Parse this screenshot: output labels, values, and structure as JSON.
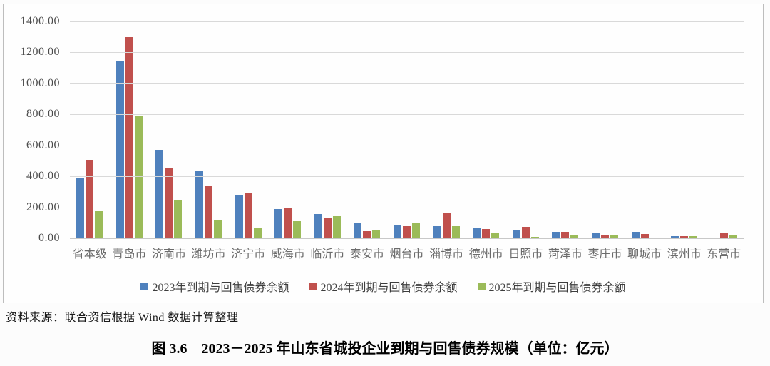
{
  "chart_data": {
    "type": "bar",
    "title": "",
    "xlabel": "",
    "ylabel": "",
    "ylim": [
      0,
      1400
    ],
    "ytick_step": 200,
    "ytick_labels": [
      "1400.00",
      "1200.00",
      "1000.00",
      "800.00",
      "600.00",
      "400.00",
      "200.00",
      "0.00"
    ],
    "grid": true,
    "legend_position": "bottom",
    "categories": [
      "省本级",
      "青岛市",
      "济南市",
      "潍坊市",
      "济宁市",
      "威海市",
      "临沂市",
      "泰安市",
      "烟台市",
      "淄博市",
      "德州市",
      "日照市",
      "菏泽市",
      "枣庄市",
      "聊城市",
      "滨州市",
      "东营市"
    ],
    "series": [
      {
        "name": "2023年到期与回售债券余额",
        "color": "#4f81bd",
        "values": [
          390,
          1140,
          570,
          435,
          278,
          190,
          155,
          103,
          85,
          80,
          69,
          54,
          40,
          35,
          40,
          12,
          0
        ]
      },
      {
        "name": "2024年到期与回售债券余额",
        "color": "#c0504d",
        "values": [
          506,
          1300,
          450,
          335,
          295,
          199,
          130,
          47,
          78,
          160,
          62,
          72,
          42,
          20,
          27,
          16,
          33
        ]
      },
      {
        "name": "2025年到期与回售债券余额",
        "color": "#9bbb59",
        "values": [
          176,
          792,
          248,
          113,
          67,
          109,
          142,
          57,
          96,
          80,
          34,
          8,
          19,
          22,
          0,
          12,
          23
        ]
      }
    ]
  },
  "source_note": "资料来源：联合资信根据 Wind 数据计算整理",
  "caption": "图 3.6　2023－2025 年山东省城投企业到期与回售债券规模（单位：亿元）"
}
